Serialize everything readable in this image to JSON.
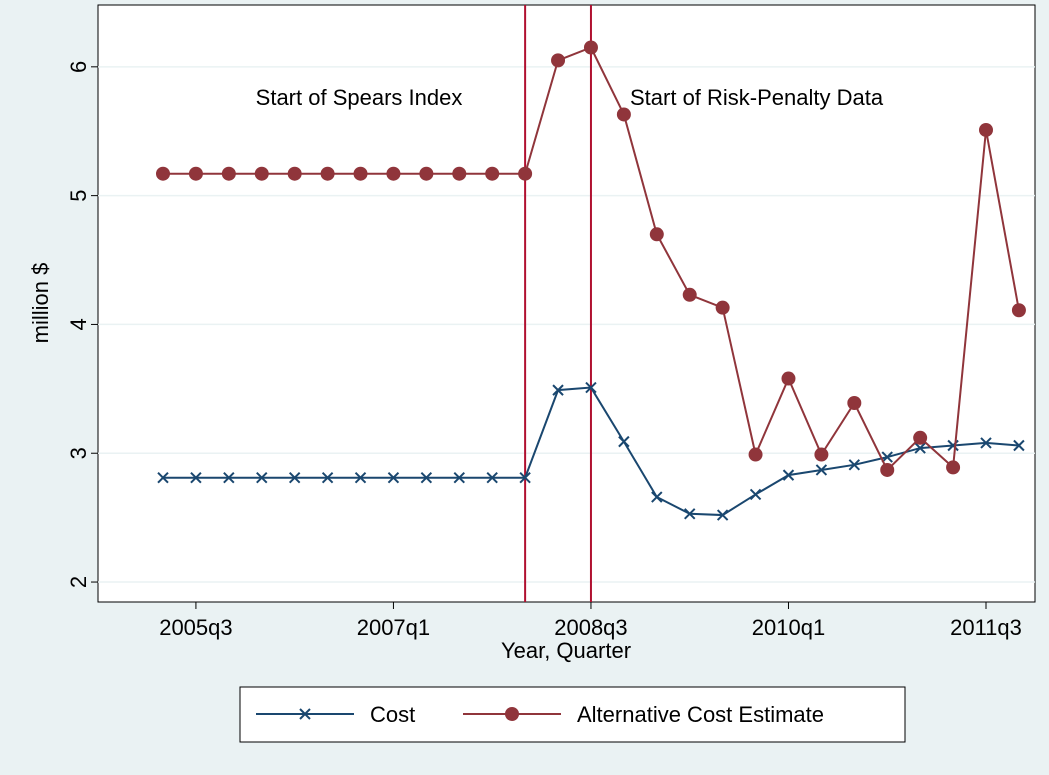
{
  "chart_data": {
    "type": "line",
    "x": [
      "2005q2",
      "2005q3",
      "2005q4",
      "2006q1",
      "2006q2",
      "2006q3",
      "2006q4",
      "2007q1",
      "2007q2",
      "2007q3",
      "2007q4",
      "2008q1",
      "2008q2",
      "2008q3",
      "2008q4",
      "2009q1",
      "2009q2",
      "2009q3",
      "2009q4",
      "2010q1",
      "2010q2",
      "2010q3",
      "2010q4",
      "2011q1",
      "2011q2",
      "2011q3",
      "2011q4"
    ],
    "series": [
      {
        "name": "Cost",
        "color": "#1a476f",
        "marker": "x",
        "values": [
          2.81,
          2.81,
          2.81,
          2.81,
          2.81,
          2.81,
          2.81,
          2.81,
          2.81,
          2.81,
          2.81,
          2.81,
          3.49,
          3.51,
          3.09,
          2.66,
          2.53,
          2.52,
          2.68,
          2.83,
          2.87,
          2.91,
          2.97,
          3.04,
          3.06,
          3.08,
          3.06
        ]
      },
      {
        "name": "Alternative Cost Estimate",
        "color": "#90353b",
        "marker": "circle",
        "values": [
          5.17,
          5.17,
          5.17,
          5.17,
          5.17,
          5.17,
          5.17,
          5.17,
          5.17,
          5.17,
          5.17,
          5.17,
          6.05,
          6.15,
          5.63,
          4.7,
          4.23,
          4.13,
          2.99,
          3.58,
          2.99,
          3.39,
          2.87,
          3.12,
          2.89,
          5.51,
          4.11
        ]
      }
    ],
    "xlabel": "Year, Quarter",
    "ylabel": "million $",
    "xticks": [
      "2005q3",
      "2007q1",
      "2008q3",
      "2010q1",
      "2011q3"
    ],
    "ylim": [
      1.845,
      6.48
    ],
    "yticks": [
      2,
      3,
      4,
      5,
      6
    ],
    "grid": true,
    "vlines": [
      "2008q1",
      "2008q3"
    ],
    "vline_color": "#b01030",
    "annotations": [
      "Start of Spears Index",
      "Start of Risk-Penalty Data"
    ],
    "legend": "bottom"
  }
}
